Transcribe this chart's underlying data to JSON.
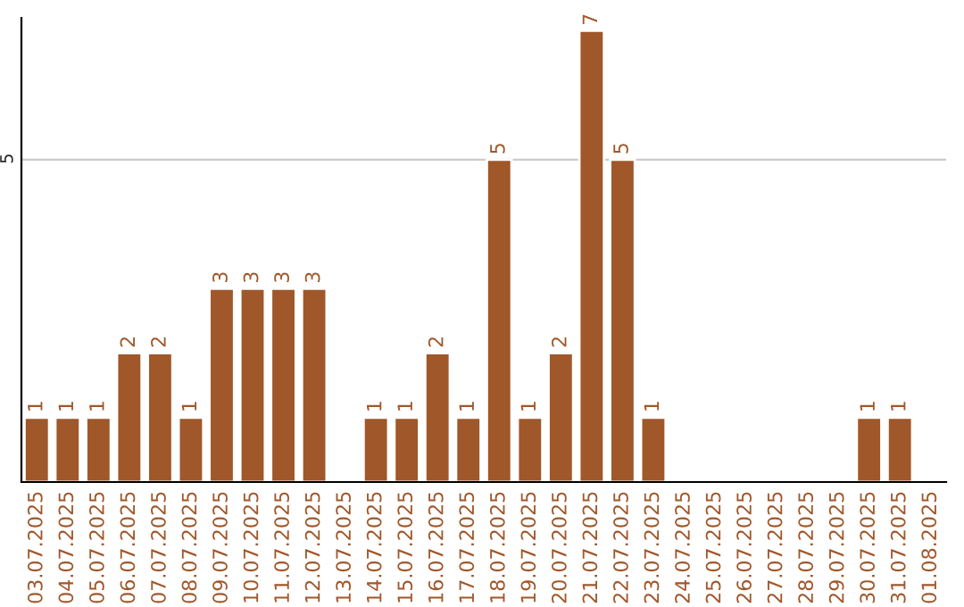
{
  "chart_data": {
    "type": "bar",
    "categories": [
      "03.07.2025",
      "04.07.2025",
      "05.07.2025",
      "06.07.2025",
      "07.07.2025",
      "08.07.2025",
      "09.07.2025",
      "10.07.2025",
      "11.07.2025",
      "12.07.2025",
      "13.07.2025",
      "14.07.2025",
      "15.07.2025",
      "16.07.2025",
      "17.07.2025",
      "18.07.2025",
      "19.07.2025",
      "20.07.2025",
      "21.07.2025",
      "22.07.2025",
      "23.07.2025",
      "24.07.2025",
      "25.07.2025",
      "26.07.2025",
      "27.07.2025",
      "28.07.2025",
      "29.07.2025",
      "30.07.2025",
      "31.07.2025",
      "01.08.2025"
    ],
    "values": [
      1,
      1,
      1,
      2,
      2,
      1,
      3,
      3,
      3,
      3,
      null,
      1,
      1,
      2,
      1,
      5,
      1,
      2,
      7,
      5,
      1,
      null,
      null,
      null,
      null,
      null,
      null,
      1,
      1,
      null
    ],
    "color": "#a0572a",
    "ylim": [
      0,
      7.2
    ],
    "yticks": [
      5
    ],
    "grid": "y",
    "data_labels": true
  }
}
